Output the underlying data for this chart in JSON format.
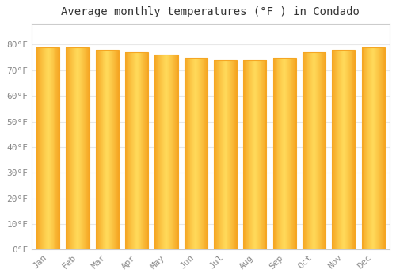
{
  "title": "Average monthly temperatures (°F ) in Condado",
  "months": [
    "Jan",
    "Feb",
    "Mar",
    "Apr",
    "May",
    "Jun",
    "Jul",
    "Aug",
    "Sep",
    "Oct",
    "Nov",
    "Dec"
  ],
  "values": [
    79,
    79,
    78,
    77,
    76,
    75,
    74,
    74,
    75,
    77,
    78,
    79
  ],
  "bar_color_center": "#FFD95A",
  "bar_color_edge": "#F5A623",
  "background_color": "#FFFFFF",
  "plot_bg_color": "#FFFFFF",
  "grid_color": "#E8E8E8",
  "border_color": "#CCCCCC",
  "yticks": [
    0,
    10,
    20,
    30,
    40,
    50,
    60,
    70,
    80
  ],
  "ytick_labels": [
    "0°F",
    "10°F",
    "20°F",
    "30°F",
    "40°F",
    "50°F",
    "60°F",
    "70°F",
    "80°F"
  ],
  "ylim": [
    0,
    88
  ],
  "title_fontsize": 10,
  "tick_fontsize": 8,
  "tick_color": "#888888",
  "title_color": "#333333"
}
